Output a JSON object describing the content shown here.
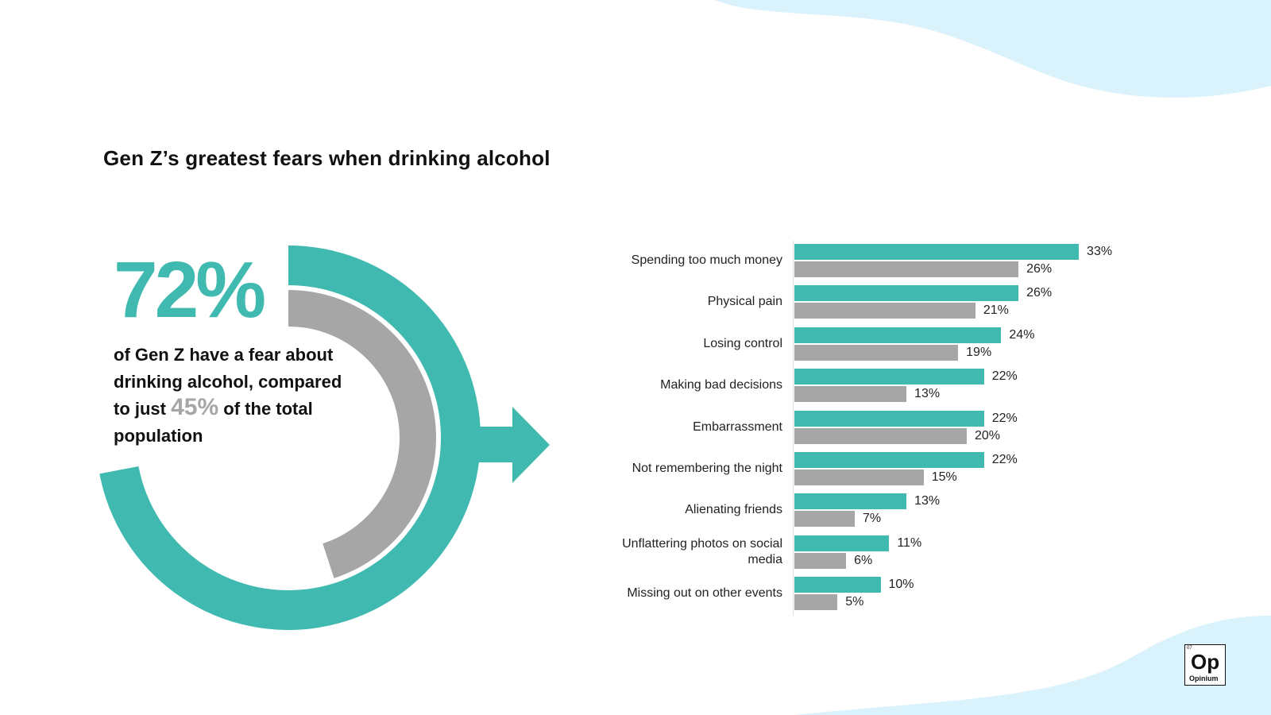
{
  "title": "Gen Z’s greatest fears when drinking alcohol",
  "headline": {
    "big_value": "72%",
    "text_1": "of Gen Z have a fear about drinking alcohol, compared to just",
    "highlight": "45%",
    "text_2": "of the total population"
  },
  "colors": {
    "gen_z": "#40BAB0",
    "total": "#A6A6A6",
    "background_shape": "#D9F2FB"
  },
  "donut": {
    "gen_z_percent": 72,
    "total_percent": 45
  },
  "chart_data": {
    "type": "bar",
    "orientation": "horizontal",
    "categories": [
      "Spending too much money",
      "Physical pain",
      "Losing control",
      "Making bad decisions",
      "Embarrassment",
      "Not remembering the night",
      "Alienating friends",
      "Unflattering photos on social media",
      "Missing out on other events"
    ],
    "series": [
      {
        "values": [
          33,
          26,
          24,
          22,
          22,
          22,
          13,
          11,
          10
        ],
        "labels": [
          "33%",
          "26%",
          "24%",
          "22%",
          "22%",
          "22%",
          "13%",
          "11%",
          "10%"
        ]
      },
      {
        "values": [
          26,
          21,
          19,
          13,
          20,
          15,
          7,
          6,
          5
        ],
        "labels": [
          "26%",
          "21%",
          "19%",
          "13%",
          "20%",
          "15%",
          "7%",
          "6%",
          "5%"
        ]
      }
    ]
  },
  "logo": {
    "number": "07",
    "symbol": "Op",
    "name": "Opinium"
  }
}
